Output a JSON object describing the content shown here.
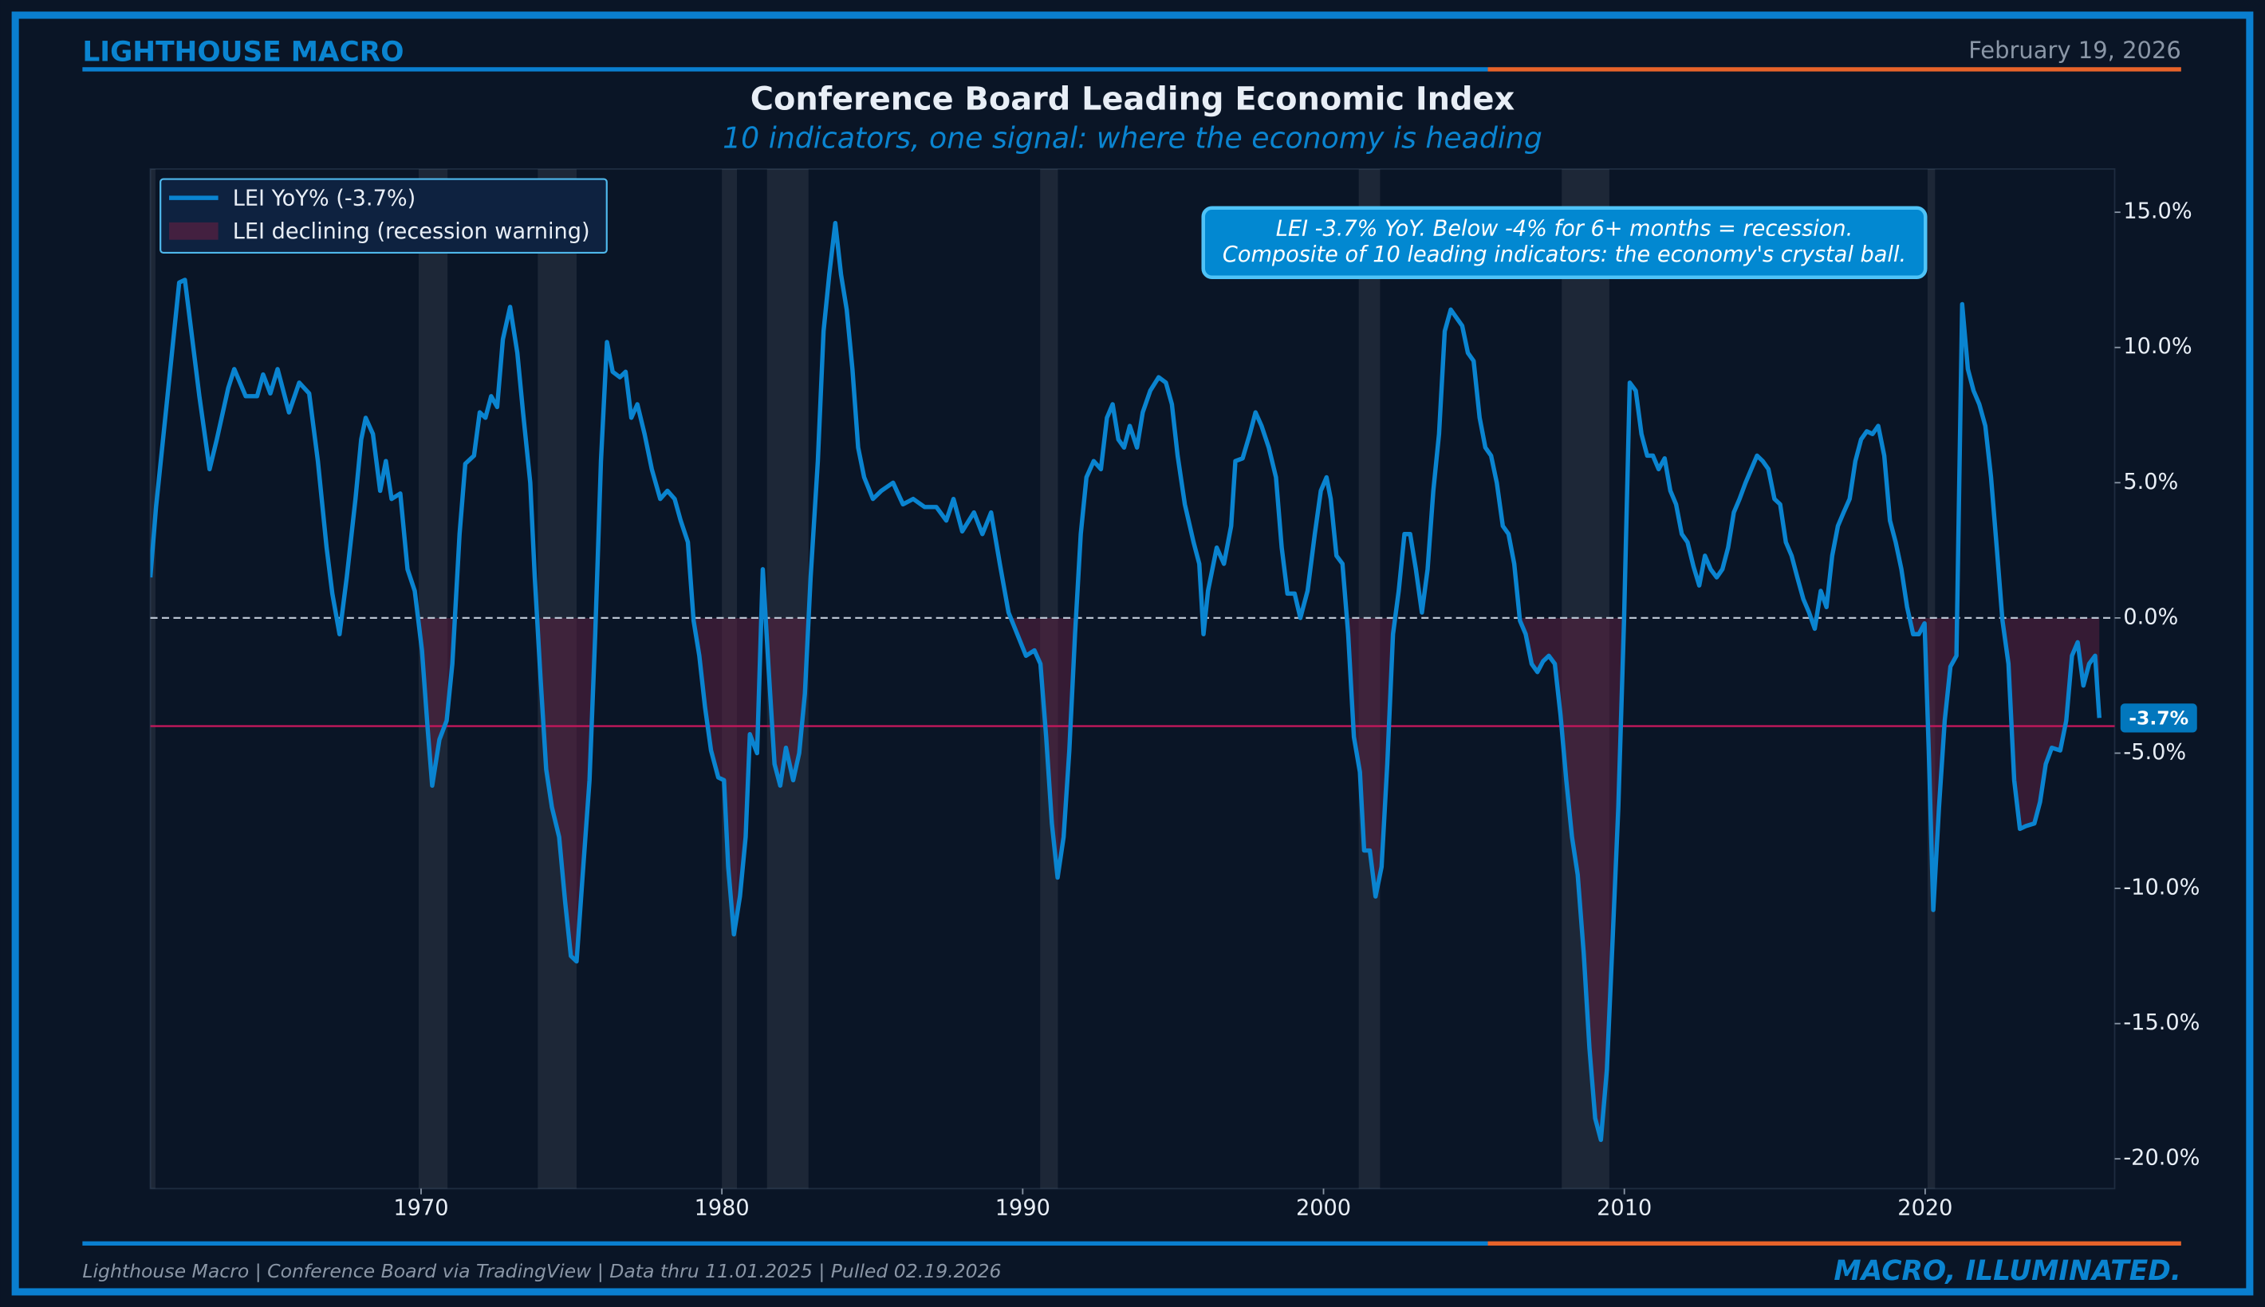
{
  "header": {
    "brand": "LIGHTHOUSE MACRO",
    "date": "February 19, 2026"
  },
  "footer": {
    "source": "Lighthouse Macro | Conference Board via TradingView | Data thru 11.01.2025 | Pulled 02.19.2026",
    "tagline": "MACRO, ILLUMINATED."
  },
  "chart_data": {
    "type": "line",
    "title": "Conference Board Leading Economic Index",
    "subtitle": "10 indicators, one signal: where the economy is heading",
    "annotation": [
      "LEI -3.7% YoY. Below -4% for 6+ months = recession.",
      "Composite of 10 leading indicators: the economy's crystal ball."
    ],
    "fill_name": "LEI declining (recession warning)",
    "fill_color": "#5a2040",
    "threshold": -4,
    "threshold_color": "#c2185b",
    "zero_line": 0,
    "current_label": {
      "value": -3.7,
      "label": "-3.7%"
    },
    "grid": false,
    "legend": "upper left",
    "xlim": [
      1961,
      2026.3
    ],
    "xticks": [
      1970,
      1980,
      1990,
      2000,
      2010,
      2020
    ],
    "ylim": [
      -21.1,
      16.6
    ],
    "yticks": [
      {
        "value": 15,
        "label": "15.0%"
      },
      {
        "value": 10,
        "label": "10.0%"
      },
      {
        "value": 5,
        "label": "5.0%"
      },
      {
        "value": 0,
        "label": "0.0%"
      },
      {
        "value": -5,
        "label": "-5.0%"
      },
      {
        "value": -10,
        "label": "-10.0%"
      },
      {
        "value": -15,
        "label": "-15.0%"
      },
      {
        "value": -20,
        "label": "-20.0%"
      }
    ],
    "recessions": [
      [
        1960.3,
        1961.17
      ],
      [
        1969.92,
        1970.88
      ],
      [
        1973.88,
        1975.17
      ],
      [
        1980.0,
        1980.5
      ],
      [
        1981.5,
        1982.88
      ],
      [
        1990.58,
        1991.17
      ],
      [
        2001.17,
        2001.88
      ],
      [
        2007.92,
        2009.5
      ],
      [
        2020.08,
        2020.33
      ]
    ],
    "x": [
      1961.0,
      1961.19,
      1961.58,
      1961.96,
      1962.15,
      1962.34,
      1962.63,
      1962.97,
      1963.21,
      1963.59,
      1963.79,
      1964.17,
      1964.55,
      1964.75,
      1964.99,
      1965.23,
      1965.61,
      1965.95,
      1966.28,
      1966.57,
      1966.86,
      1967.05,
      1967.29,
      1967.53,
      1967.82,
      1968.01,
      1968.16,
      1968.4,
      1968.64,
      1968.83,
      1969.02,
      1969.31,
      1969.55,
      1969.79,
      1970.03,
      1970.22,
      1970.37,
      1970.61,
      1970.85,
      1971.04,
      1971.28,
      1971.47,
      1971.76,
      1971.95,
      1972.14,
      1972.33,
      1972.53,
      1972.72,
      1972.96,
      1973.2,
      1973.39,
      1973.63,
      1973.78,
      1973.97,
      1974.16,
      1974.35,
      1974.59,
      1974.79,
      1974.98,
      1975.17,
      1975.36,
      1975.6,
      1975.79,
      1975.98,
      1976.18,
      1976.37,
      1976.61,
      1976.8,
      1976.99,
      1977.19,
      1977.43,
      1977.67,
      1977.95,
      1978.19,
      1978.43,
      1978.63,
      1978.87,
      1979.06,
      1979.25,
      1979.44,
      1979.64,
      1979.88,
      1980.07,
      1980.21,
      1980.4,
      1980.6,
      1980.79,
      1980.93,
      1981.17,
      1981.36,
      1981.56,
      1981.75,
      1981.94,
      1982.13,
      1982.37,
      1982.57,
      1982.76,
      1982.95,
      1983.19,
      1983.38,
      1983.57,
      1983.77,
      1983.96,
      1984.15,
      1984.34,
      1984.53,
      1984.73,
      1985.02,
      1985.3,
      1985.69,
      1986.02,
      1986.36,
      1986.74,
      1987.13,
      1987.46,
      1987.7,
      1987.99,
      1988.38,
      1988.66,
      1988.95,
      1989.24,
      1989.53,
      1989.82,
      1990.11,
      1990.39,
      1990.59,
      1990.78,
      1990.97,
      1991.16,
      1991.36,
      1991.55,
      1991.74,
      1991.93,
      1992.12,
      1992.36,
      1992.6,
      1992.8,
      1992.99,
      1993.18,
      1993.37,
      1993.56,
      1993.8,
      1993.99,
      1994.24,
      1994.52,
      1994.76,
      1994.96,
      1995.15,
      1995.39,
      1995.68,
      1995.87,
      1996.01,
      1996.16,
      1996.45,
      1996.69,
      1996.93,
      1997.07,
      1997.31,
      1997.55,
      1997.74,
      1997.94,
      1998.18,
      1998.42,
      1998.61,
      1998.8,
      1999.04,
      1999.23,
      1999.47,
      1999.71,
      1999.91,
      2000.1,
      2000.24,
      2000.43,
      2000.63,
      2000.82,
      2001.01,
      2001.21,
      2001.35,
      2001.54,
      2001.73,
      2001.93,
      2002.12,
      2002.31,
      2002.5,
      2002.69,
      2002.88,
      2003.07,
      2003.27,
      2003.46,
      2003.65,
      2003.84,
      2004.03,
      2004.23,
      2004.42,
      2004.61,
      2004.8,
      2004.99,
      2005.19,
      2005.38,
      2005.57,
      2005.76,
      2005.96,
      2006.15,
      2006.34,
      2006.53,
      2006.72,
      2006.92,
      2007.11,
      2007.3,
      2007.49,
      2007.69,
      2007.88,
      2008.07,
      2008.26,
      2008.45,
      2008.65,
      2008.84,
      2009.03,
      2009.22,
      2009.42,
      2009.61,
      2009.8,
      2009.99,
      2010.18,
      2010.38,
      2010.57,
      2010.76,
      2010.95,
      2011.14,
      2011.34,
      2011.53,
      2011.72,
      2011.91,
      2012.1,
      2012.3,
      2012.49,
      2012.68,
      2012.87,
      2013.07,
      2013.26,
      2013.45,
      2013.64,
      2013.83,
      2014.03,
      2014.22,
      2014.41,
      2014.6,
      2014.79,
      2014.99,
      2015.18,
      2015.37,
      2015.56,
      2015.75,
      2015.95,
      2016.14,
      2016.33,
      2016.53,
      2016.72,
      2016.91,
      2017.1,
      2017.29,
      2017.49,
      2017.68,
      2017.87,
      2018.06,
      2018.25,
      2018.44,
      2018.64,
      2018.83,
      2019.02,
      2019.21,
      2019.4,
      2019.6,
      2019.79,
      2019.98,
      2020.12,
      2020.27,
      2020.46,
      2020.65,
      2020.84,
      2021.04,
      2021.23,
      2021.42,
      2021.61,
      2021.8,
      2022.0,
      2022.19,
      2022.38,
      2022.57,
      2022.77,
      2022.96,
      2023.15,
      2023.34,
      2023.63,
      2023.82,
      2024.01,
      2024.21,
      2024.49,
      2024.69,
      2024.88,
      2025.07,
      2025.26,
      2025.45,
      2025.65,
      2025.79
    ],
    "series": [
      {
        "name": "LEI YoY% (-3.7%)",
        "color": "#0a84d0",
        "values": [
          1.5,
          4.1,
          8.3,
          12.4,
          12.5,
          10.8,
          8.2,
          5.5,
          6.6,
          8.5,
          9.2,
          8.2,
          8.2,
          9.0,
          8.3,
          9.2,
          7.6,
          8.7,
          8.3,
          5.8,
          2.6,
          0.9,
          -0.6,
          1.5,
          4.4,
          6.6,
          7.4,
          6.8,
          4.7,
          5.8,
          4.4,
          4.6,
          1.8,
          1.0,
          -1.2,
          -4.1,
          -6.2,
          -4.5,
          -3.8,
          -1.7,
          3.1,
          5.7,
          6.0,
          7.6,
          7.4,
          8.2,
          7.8,
          10.3,
          11.5,
          9.8,
          7.6,
          5.0,
          1.5,
          -2.2,
          -5.6,
          -7.0,
          -8.1,
          -10.5,
          -12.5,
          -12.7,
          -9.7,
          -6.0,
          -0.6,
          5.8,
          10.2,
          9.1,
          8.9,
          9.1,
          7.4,
          7.9,
          6.8,
          5.5,
          4.4,
          4.7,
          4.4,
          3.6,
          2.8,
          -0.1,
          -1.4,
          -3.3,
          -4.9,
          -5.9,
          -6.0,
          -9.2,
          -11.7,
          -10.3,
          -8.1,
          -4.3,
          -5.0,
          1.8,
          -2.0,
          -5.4,
          -6.2,
          -4.8,
          -6.0,
          -5.0,
          -2.8,
          1.5,
          5.8,
          10.6,
          12.7,
          14.6,
          12.7,
          11.4,
          9.2,
          6.3,
          5.2,
          4.4,
          4.7,
          5.0,
          4.2,
          4.4,
          4.1,
          4.1,
          3.6,
          4.4,
          3.2,
          3.9,
          3.1,
          3.9,
          2.0,
          0.2,
          -0.6,
          -1.4,
          -1.2,
          -1.7,
          -4.4,
          -7.6,
          -9.6,
          -8.1,
          -4.9,
          -0.6,
          3.1,
          5.2,
          5.8,
          5.5,
          7.4,
          7.9,
          6.6,
          6.3,
          7.1,
          6.3,
          7.6,
          8.4,
          8.9,
          8.7,
          7.9,
          6.0,
          4.2,
          2.8,
          2.0,
          -0.6,
          1.0,
          2.6,
          2.0,
          3.4,
          5.8,
          5.9,
          6.8,
          7.6,
          7.1,
          6.3,
          5.2,
          2.6,
          0.9,
          0.9,
          0.0,
          1.0,
          3.1,
          4.7,
          5.2,
          4.4,
          2.3,
          2.0,
          -0.6,
          -4.4,
          -5.7,
          -8.6,
          -8.6,
          -10.3,
          -9.2,
          -5.4,
          -0.6,
          1.0,
          3.1,
          3.1,
          1.8,
          0.2,
          1.8,
          4.7,
          6.8,
          10.6,
          11.4,
          11.1,
          10.8,
          9.8,
          9.5,
          7.4,
          6.3,
          6.0,
          5.0,
          3.4,
          3.1,
          2.0,
          -0.1,
          -0.6,
          -1.7,
          -2.0,
          -1.6,
          -1.4,
          -1.7,
          -3.6,
          -6.0,
          -8.1,
          -9.5,
          -12.4,
          -15.9,
          -18.5,
          -19.3,
          -16.7,
          -11.9,
          -7.0,
          -0.1,
          8.7,
          8.4,
          6.8,
          6.0,
          6.0,
          5.5,
          5.9,
          4.7,
          4.2,
          3.1,
          2.8,
          1.9,
          1.2,
          2.3,
          1.8,
          1.5,
          1.8,
          2.6,
          3.9,
          4.4,
          5.0,
          5.5,
          6.0,
          5.8,
          5.5,
          4.4,
          4.2,
          2.8,
          2.3,
          1.5,
          0.7,
          0.2,
          -0.4,
          1.0,
          0.4,
          2.3,
          3.4,
          3.9,
          4.4,
          5.8,
          6.6,
          6.9,
          6.8,
          7.1,
          6.0,
          3.6,
          2.8,
          1.8,
          0.4,
          -0.6,
          -0.6,
          -0.2,
          -4.9,
          -10.8,
          -7.0,
          -3.8,
          -1.8,
          -1.4,
          11.6,
          9.2,
          8.4,
          7.9,
          7.1,
          5.2,
          2.6,
          -0.1,
          -1.7,
          -6.0,
          -7.8,
          -7.7,
          -7.6,
          -6.8,
          -5.4,
          -4.8,
          -4.9,
          -3.8,
          -1.4,
          -0.9,
          -2.5,
          -1.7,
          -1.4,
          -3.7
        ]
      }
    ]
  }
}
